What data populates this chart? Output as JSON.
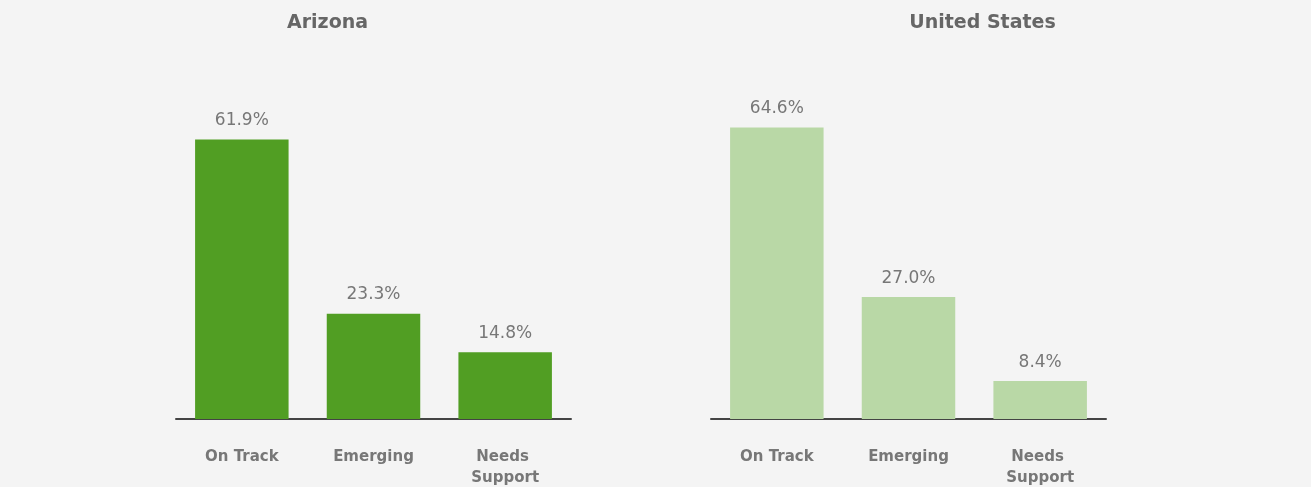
{
  "chart_data": [
    {
      "type": "bar",
      "title": "Arizona",
      "categories": [
        "On Track",
        "Emerging",
        "Needs Support"
      ],
      "values": [
        61.9,
        23.3,
        14.8
      ],
      "value_labels": [
        "61.9%",
        "23.3%",
        "14.8%"
      ],
      "color": "#519e23"
    },
    {
      "type": "bar",
      "title": "United States",
      "categories": [
        "On Track",
        "Emerging",
        "Needs Support"
      ],
      "values": [
        64.6,
        27.0,
        8.4
      ],
      "value_labels": [
        "64.6%",
        "27.0%",
        "8.4%"
      ],
      "color": "#b9d8a6"
    }
  ]
}
